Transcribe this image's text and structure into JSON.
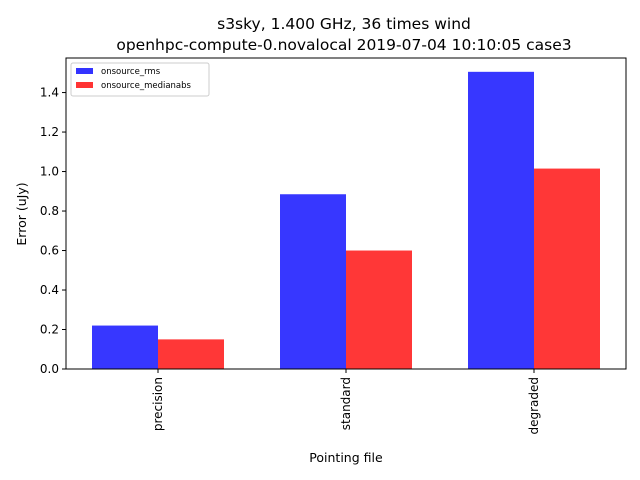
{
  "chart_data": {
    "type": "bar",
    "title": "s3sky, 1.400 GHz, 36 times wind",
    "subtitle": "openhpc-compute-0.novalocal 2019-07-04 10:10:05 case3",
    "xlabel": "Pointing file",
    "ylabel": "Error (uJy)",
    "categories": [
      "precision",
      "standard",
      "degraded"
    ],
    "series": [
      {
        "name": "onsource_rms",
        "color": "#3333ff",
        "values": [
          0.22,
          0.885,
          1.505
        ]
      },
      {
        "name": "onsource_medianabs",
        "color": "#ff3333",
        "values": [
          0.15,
          0.6,
          1.015
        ]
      }
    ],
    "ylim": [
      0,
      1.575
    ],
    "yticks": [
      "0.0",
      "0.2",
      "0.4",
      "0.6",
      "0.8",
      "1.0",
      "1.2",
      "1.4"
    ],
    "legend": "top-left",
    "grid": false
  }
}
